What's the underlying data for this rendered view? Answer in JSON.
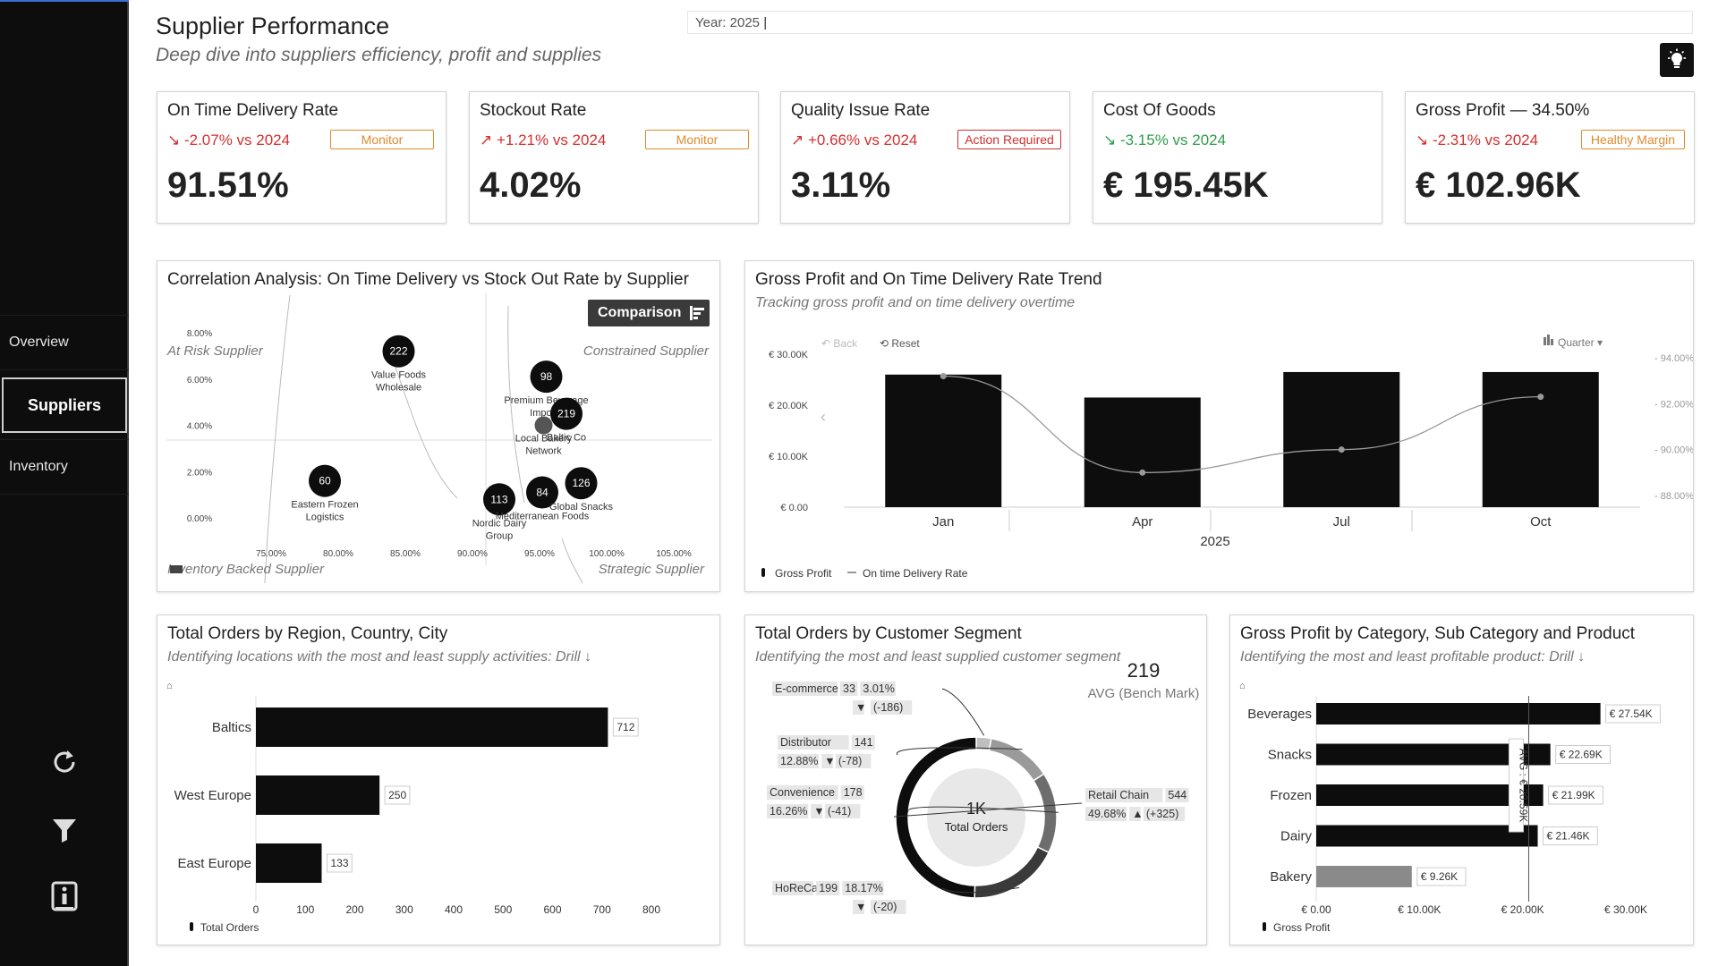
{
  "sidebar": {
    "items": [
      {
        "label": "Overview"
      },
      {
        "label": "Suppliers"
      },
      {
        "label": "Inventory"
      }
    ],
    "icons": [
      "refresh-icon",
      "filter-icon",
      "info-icon"
    ]
  },
  "header": {
    "title": "Supplier Performance",
    "subtitle": "Deep dive into suppliers efficiency, profit and supplies",
    "year_slicer": "Year: 2025"
  },
  "kpis": [
    {
      "title": "On Time Delivery Rate",
      "delta": "↘ -2.07% vs 2024",
      "badge": "Monitor",
      "value": "91.51%"
    },
    {
      "title": "Stockout Rate",
      "delta": "↗ +1.21% vs 2024",
      "badge": "Monitor",
      "value": "4.02%"
    },
    {
      "title": "Quality Issue Rate",
      "delta": "↗ +0.66% vs 2024",
      "badge": "Action Required",
      "value": "3.11%"
    },
    {
      "title": "Cost Of Goods",
      "delta": "↘ -3.15% vs 2024",
      "badge": "",
      "value": "€ 195.45K"
    },
    {
      "title": "Gross Profit — 34.50%",
      "delta": "↘ -2.31% vs 2024",
      "badge": "Healthy Margin",
      "value": "€ 102.96K"
    }
  ],
  "correlation": {
    "title": "Correlation Analysis: On Time Delivery vs Stock Out Rate by Supplier",
    "comparison_button": "Comparison",
    "quadrants": [
      "At Risk Supplier",
      "Constrained Supplier",
      "Inventory Backed Supplier",
      "Strategic Supplier"
    ]
  },
  "trend": {
    "title": "Gross Profit and On Time Delivery Rate Trend",
    "subtitle": "Tracking gross profit and on time delivery overtime",
    "back": "Back",
    "reset": "Reset",
    "quarter": "Quarter",
    "year_label": "2025"
  },
  "orders_region": {
    "title": "Total Orders by Region, Country, City",
    "subtitle": "Identifying locations with the most and least supply activities: Drill ↓"
  },
  "segment": {
    "title": "Total Orders by Customer Segment",
    "subtitle": "Identifying the most and least supplied customer segment",
    "bench_value": "219",
    "bench_label": "AVG (Bench Mark)",
    "center_value": "1K",
    "center_label": "Total Orders",
    "segments": [
      {
        "name": "E-commerce",
        "count": "33",
        "share": "3.01%",
        "diff": "(-186)",
        "arrow": "▼"
      },
      {
        "name": "Distributor",
        "count": "141",
        "share": "12.88%",
        "diff": "(-78)",
        "arrow": "▼"
      },
      {
        "name": "Convenience",
        "count": "178",
        "share": "16.26%",
        "diff": "(-41)",
        "arrow": "▼"
      },
      {
        "name": "HoReCa",
        "count": "199",
        "share": "18.17%",
        "diff": "(-20)",
        "arrow": "▼"
      },
      {
        "name": "Retail Chain",
        "count": "544",
        "share": "49.68%",
        "diff": "(+325)",
        "arrow": "▲"
      }
    ]
  },
  "category": {
    "title": "Gross Profit by Category, Sub Category and Product",
    "subtitle": "Identifying the most and least profitable product: Drill ↓"
  },
  "chart_data": [
    {
      "type": "scatter",
      "xlim": [
        75,
        105
      ],
      "ylim": [
        0,
        8
      ],
      "x_tick_labels": [
        "75.00%",
        "80.00%",
        "85.00%",
        "90.00%",
        "95.00%",
        "100.00%",
        "105.00%"
      ],
      "y_tick_labels": [
        "0.00%",
        "2.00%",
        "4.00%",
        "6.00%",
        "8.00%"
      ],
      "points": [
        {
          "label": "222",
          "name": "Value Foods Wholesale",
          "x": 84.5,
          "y": 7.2
        },
        {
          "label": "98",
          "name": "Premium Beverage Imports",
          "x": 95.5,
          "y": 6.1
        },
        {
          "label": "219",
          "name": "Baltic Co",
          "x": 97.0,
          "y": 4.5
        },
        {
          "label": "",
          "name": "Local Bakery Network",
          "x": 95.3,
          "y": 4.0
        },
        {
          "label": "60",
          "name": "Eastern Frozen Logistics",
          "x": 79.0,
          "y": 1.6
        },
        {
          "label": "113",
          "name": "Nordic Dairy Group",
          "x": 92.0,
          "y": 0.8
        },
        {
          "label": "84",
          "name": "Mediterranean Foods",
          "x": 95.2,
          "y": 1.1
        },
        {
          "label": "126",
          "name": "Global Snacks",
          "x": 98.1,
          "y": 1.5
        }
      ]
    },
    {
      "type": "bar",
      "categories": [
        "Jan",
        "Apr",
        "Jul",
        "Oct"
      ],
      "series": [
        {
          "name": "Gross Profit",
          "type": "bar",
          "values": [
            26000,
            21500,
            26500,
            26500
          ]
        },
        {
          "name": "On time Delivery Rate",
          "type": "line",
          "values": [
            93.2,
            89.0,
            90.0,
            92.3
          ]
        }
      ],
      "ylim": [
        0,
        30000
      ],
      "y2lim": [
        88,
        94
      ],
      "y_tick_labels": [
        "€ 0.00",
        "€ 10.00K",
        "€ 20.00K",
        "€ 30.00K"
      ],
      "y2_tick_labels": [
        "88.00%",
        "90.00%",
        "92.00%",
        "94.00%"
      ]
    },
    {
      "type": "bar",
      "orientation": "horizontal",
      "categories": [
        "Baltics",
        "West Europe",
        "East Europe"
      ],
      "values": [
        712,
        250,
        133
      ],
      "value_labels": [
        "712",
        "250",
        "133"
      ],
      "xlim": [
        0,
        800
      ],
      "x_tick_labels": [
        "0",
        "100",
        "200",
        "300",
        "400",
        "500",
        "600",
        "700",
        "800"
      ],
      "legend": "Total Orders"
    },
    {
      "type": "pie",
      "categories": [
        "E-commerce",
        "Distributor",
        "Convenience",
        "HoReCa",
        "Retail Chain"
      ],
      "values": [
        33,
        141,
        178,
        199,
        544
      ]
    },
    {
      "type": "bar",
      "orientation": "horizontal",
      "categories": [
        "Beverages",
        "Snacks",
        "Frozen",
        "Dairy",
        "Bakery"
      ],
      "values": [
        27540,
        22690,
        21990,
        21460,
        9260
      ],
      "value_labels": [
        "€ 27.54K",
        "€ 22.69K",
        "€ 21.99K",
        "€ 21.46K",
        "€ 9.26K"
      ],
      "xlim": [
        0,
        30000
      ],
      "x_tick_labels": [
        "€ 0.00",
        "€ 10.00K",
        "€ 20.00K",
        "€ 30.00K"
      ],
      "avg_label": "AVG : € 20.59K",
      "avg_value": 20590,
      "legend": "Gross Profit"
    }
  ],
  "colors": {
    "sidebar": "#0d0d0d",
    "accent": "#3b6fd6",
    "bar": "#111111",
    "bakery_bar": "#8a8a8a",
    "negative": "#d32f2f",
    "positive": "#2e9d4a",
    "warning": "#e08a2c"
  }
}
